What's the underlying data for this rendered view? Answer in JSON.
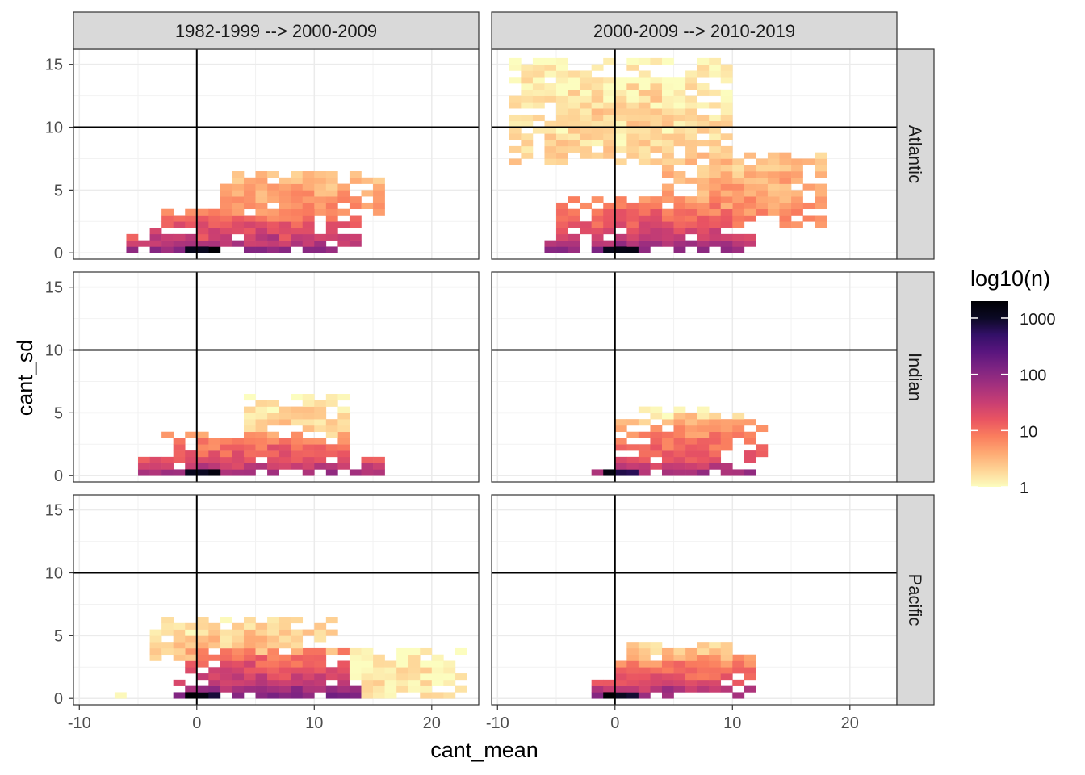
{
  "chart_data": {
    "type": "heatmap",
    "description_free": true,
    "facet_cols": [
      "1982-1999 --> 2000-2009",
      "2000-2009 --> 2010-2019"
    ],
    "facet_rows": [
      "Atlantic",
      "Indian",
      "Pacific"
    ],
    "xlabel": "cant_mean",
    "ylabel": "cant_sd",
    "xlim": [
      -10.5,
      24
    ],
    "ylim": [
      -0.5,
      16.2
    ],
    "x_ticks": [
      -10,
      0,
      10,
      20
    ],
    "x_tick_labels": [
      "-10",
      "0",
      "10",
      "20"
    ],
    "y_ticks": [
      0,
      5,
      10,
      15
    ],
    "y_tick_labels": [
      "0",
      "5",
      "10",
      "15"
    ],
    "reference_lines": {
      "x": 0,
      "y": 10
    },
    "bin_width": {
      "x": 1,
      "y": 0.5
    },
    "legend": {
      "title": "log10(n)",
      "scale": "log10",
      "breaks": [
        1,
        10,
        100,
        1000
      ],
      "break_labels": [
        "1",
        "10",
        "100",
        "1000"
      ],
      "min": 1,
      "max": 2000,
      "palette": [
        "#fcfdbf",
        "#fed395",
        "#fea973",
        "#fa7d5e",
        "#e95462",
        "#c83e73",
        "#a3307e",
        "#7e2482",
        "#59157e",
        "#331068",
        "#0b0924",
        "#000004"
      ]
    },
    "panels": [
      {
        "row": "Atlantic",
        "col": "1982-1999 --> 2000-2009",
        "blobs": [
          {
            "x": [
              -6,
              14
            ],
            "y": [
              0,
              1.5
            ],
            "level": 1.6,
            "grad": 0.35
          },
          {
            "x": [
              -4,
              14
            ],
            "y": [
              1,
              3.5
            ],
            "level": 1.2,
            "grad": 0.4
          },
          {
            "x": [
              2,
              16
            ],
            "y": [
              3,
              6.5
            ],
            "level": 0.6,
            "grad": 0.2
          },
          {
            "x": [
              -1,
              2
            ],
            "y": [
              0,
              0.5
            ],
            "level": 3.1,
            "grad": 0
          }
        ]
      },
      {
        "row": "Atlantic",
        "col": "2000-2009 --> 2010-2019",
        "blobs": [
          {
            "x": [
              -6,
              12
            ],
            "y": [
              0,
              1.5
            ],
            "level": 1.7,
            "grad": 0.3
          },
          {
            "x": [
              -5,
              12
            ],
            "y": [
              1,
              4.5
            ],
            "level": 1.1,
            "grad": 0.35
          },
          {
            "x": [
              4,
              18
            ],
            "y": [
              2,
              8
            ],
            "level": 0.6,
            "grad": 0.2
          },
          {
            "x": [
              -9,
              10
            ],
            "y": [
              7,
              15.5
            ],
            "level": 0.2,
            "grad": 0.1
          },
          {
            "x": [
              -1,
              2
            ],
            "y": [
              0,
              0.5
            ],
            "level": 3.0,
            "grad": 0
          }
        ]
      },
      {
        "row": "Indian",
        "col": "1982-1999 --> 2000-2009",
        "blobs": [
          {
            "x": [
              -5,
              16
            ],
            "y": [
              0,
              1.5
            ],
            "level": 1.5,
            "grad": 0.3
          },
          {
            "x": [
              -3,
              13
            ],
            "y": [
              1,
              3.5
            ],
            "level": 1.0,
            "grad": 0.3
          },
          {
            "x": [
              4,
              13
            ],
            "y": [
              3,
              6.5
            ],
            "level": 0.2,
            "grad": 0.1
          },
          {
            "x": [
              -1,
              2
            ],
            "y": [
              0,
              0.5
            ],
            "level": 3.0,
            "grad": 0
          }
        ]
      },
      {
        "row": "Indian",
        "col": "2000-2009 --> 2010-2019",
        "blobs": [
          {
            "x": [
              -2,
              12
            ],
            "y": [
              0,
              1.5
            ],
            "level": 1.5,
            "grad": 0.3
          },
          {
            "x": [
              0,
              13
            ],
            "y": [
              1,
              4.5
            ],
            "level": 0.9,
            "grad": 0.3
          },
          {
            "x": [
              2,
              11
            ],
            "y": [
              4,
              5.5
            ],
            "level": 0.2,
            "grad": 0.1
          },
          {
            "x": [
              -1,
              2
            ],
            "y": [
              0,
              0.5
            ],
            "level": 3.0,
            "grad": 0
          }
        ]
      },
      {
        "row": "Pacific",
        "col": "1982-1999 --> 2000-2009",
        "blobs": [
          {
            "x": [
              -2,
              14
            ],
            "y": [
              0,
              1.5
            ],
            "level": 1.8,
            "grad": 0.3
          },
          {
            "x": [
              -1,
              13
            ],
            "y": [
              1,
              4
            ],
            "level": 1.2,
            "grad": 0.35
          },
          {
            "x": [
              -4,
              12
            ],
            "y": [
              3,
              6.5
            ],
            "level": 0.3,
            "grad": 0.1
          },
          {
            "x": [
              13,
              23
            ],
            "y": [
              0,
              4
            ],
            "level": 0.1,
            "grad": 0.05
          },
          {
            "x": [
              -7,
              -6
            ],
            "y": [
              0,
              0.5
            ],
            "level": 0.1,
            "grad": 0
          },
          {
            "x": [
              -1,
              2
            ],
            "y": [
              0,
              0.5
            ],
            "level": 3.1,
            "grad": 0
          }
        ]
      },
      {
        "row": "Pacific",
        "col": "2000-2009 --> 2010-2019",
        "blobs": [
          {
            "x": [
              -2,
              12
            ],
            "y": [
              0,
              1.5
            ],
            "level": 1.6,
            "grad": 0.3
          },
          {
            "x": [
              0,
              12
            ],
            "y": [
              1,
              3.5
            ],
            "level": 1.0,
            "grad": 0.3
          },
          {
            "x": [
              1,
              10
            ],
            "y": [
              3,
              4.5
            ],
            "level": 0.4,
            "grad": 0.1
          },
          {
            "x": [
              -1,
              2
            ],
            "y": [
              0,
              0.5
            ],
            "level": 3.1,
            "grad": 0
          }
        ]
      }
    ]
  }
}
